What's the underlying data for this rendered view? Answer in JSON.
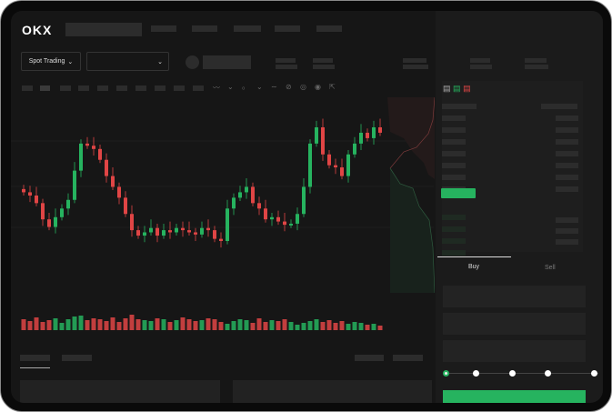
{
  "brand": {
    "logo": "OKX"
  },
  "header": {
    "market_selector_label": "Spot Trading",
    "chevron": "chevron-down-icon"
  },
  "order_form": {
    "tabs": [
      {
        "label": "Buy",
        "active": true
      },
      {
        "label": "Sell",
        "active": false
      }
    ],
    "slider_value": 0,
    "slider_stops": 5
  },
  "colors": {
    "up": "#26b35f",
    "down": "#e04545",
    "bg": "#161616"
  },
  "chart_data": {
    "type": "candlestick",
    "close": [
      95,
      92,
      85,
      70,
      63,
      72,
      80,
      88,
      115,
      140,
      138,
      135,
      125,
      110,
      100,
      90,
      75,
      60,
      55,
      58,
      62,
      55,
      60,
      58,
      62,
      60,
      58,
      56,
      62,
      60,
      52,
      50,
      80,
      90,
      95,
      100,
      85,
      80,
      70,
      72,
      68,
      65,
      66,
      75,
      100,
      140,
      155,
      130,
      120,
      118,
      110,
      130,
      140,
      150,
      145,
      155,
      150
    ],
    "volume": [
      12,
      10,
      14,
      9,
      11,
      13,
      8,
      12,
      15,
      16,
      11,
      13,
      12,
      10,
      14,
      9,
      13,
      17,
      12,
      11,
      10,
      13,
      12,
      9,
      11,
      14,
      12,
      10,
      11,
      13,
      12,
      9,
      7,
      10,
      12,
      11,
      8,
      13,
      9,
      11,
      10,
      12,
      9,
      6,
      8,
      10,
      12,
      9,
      11,
      8,
      10,
      7,
      9,
      8,
      6,
      7,
      5
    ]
  }
}
